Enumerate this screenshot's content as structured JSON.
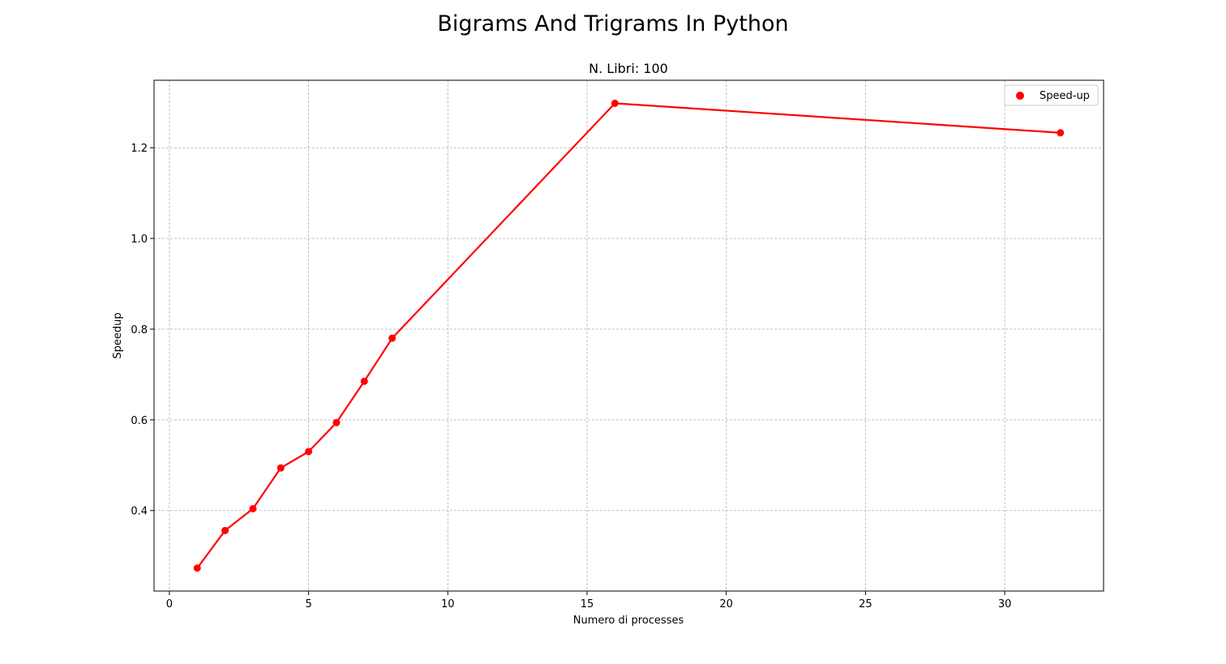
{
  "figure": {
    "suptitle": "Bigrams And Trigrams In Python"
  },
  "chart_data": {
    "type": "line",
    "title": "N. Libri: 100",
    "xlabel": "Numero di processes",
    "ylabel": "Speedup",
    "xlim": [
      -0.55,
      33.55
    ],
    "ylim": [
      0.2225,
      1.3488
    ],
    "xticks": [
      0,
      5,
      10,
      15,
      20,
      25,
      30
    ],
    "xtick_labels": [
      "0",
      "5",
      "10",
      "15",
      "20",
      "25",
      "30"
    ],
    "yticks": [
      0.4,
      0.6,
      0.8,
      1.0,
      1.2
    ],
    "ytick_labels": [
      "0.4",
      "0.6",
      "0.8",
      "1.0",
      "1.2"
    ],
    "grid": true,
    "legend_position": "top-right",
    "series": [
      {
        "name": "Speed-up",
        "color": "#ff0000",
        "marker": "circle",
        "x": [
          1,
          2,
          3,
          4,
          5,
          6,
          7,
          8,
          16,
          32
        ],
        "y": [
          0.273,
          0.356,
          0.404,
          0.494,
          0.53,
          0.594,
          0.685,
          0.78,
          1.298,
          1.233
        ]
      }
    ]
  }
}
